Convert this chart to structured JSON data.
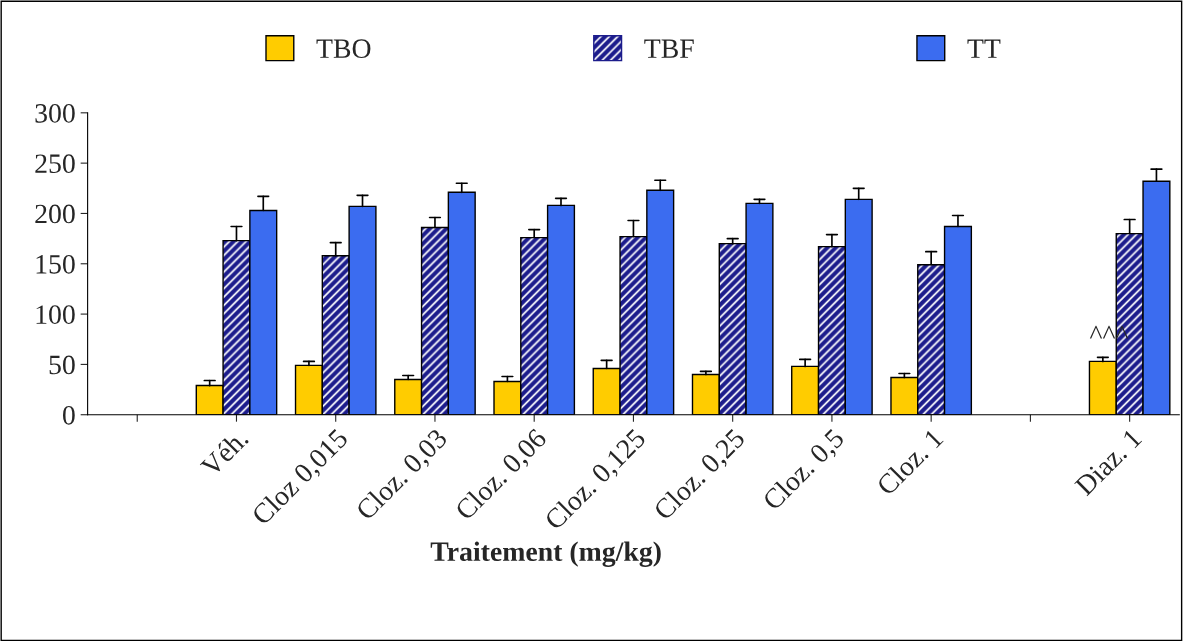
{
  "chart_data": {
    "type": "bar",
    "xlabel": "Traitement (mg/kg)",
    "categories": [
      null,
      "Véh.",
      "Cloz 0,015",
      "Cloz. 0,03",
      "Cloz. 0,06",
      "Cloz. 0,125",
      "Cloz. 0,25",
      "Cloz. 0,5",
      "Cloz. 1",
      null,
      "Diaz. 1"
    ],
    "series": [
      {
        "name": "TBO",
        "color": "#ffcc00",
        "values": [
          null,
          29,
          49,
          35,
          33,
          46,
          40,
          48,
          37,
          null,
          53
        ],
        "errors": [
          null,
          [
            29,
            34
          ],
          [
            49,
            53
          ],
          [
            35,
            39
          ],
          [
            33,
            38
          ],
          [
            46,
            54
          ],
          [
            40,
            43
          ],
          [
            48,
            55
          ],
          [
            37,
            41
          ],
          null,
          [
            53,
            57
          ]
        ]
      },
      {
        "name": "TBF",
        "color": "#1c1c8c",
        "values": [
          null,
          173,
          158,
          186,
          176,
          177,
          170,
          167,
          149,
          null,
          180
        ],
        "errors": [
          null,
          [
            173,
            187
          ],
          [
            158,
            171
          ],
          [
            186,
            196
          ],
          [
            176,
            184
          ],
          [
            177,
            193
          ],
          [
            170,
            175
          ],
          [
            167,
            179
          ],
          [
            149,
            162
          ],
          null,
          [
            180,
            194
          ]
        ]
      },
      {
        "name": "TT",
        "color": "#3b6cf0",
        "values": [
          null,
          203,
          207,
          221,
          208,
          223,
          210,
          214,
          187,
          null,
          232
        ],
        "errors": [
          null,
          [
            203,
            217
          ],
          [
            207,
            218
          ],
          [
            221,
            230
          ],
          [
            208,
            215
          ],
          [
            223,
            233
          ],
          [
            210,
            214
          ],
          [
            214,
            225
          ],
          [
            187,
            198
          ],
          null,
          [
            232,
            244
          ]
        ]
      }
    ],
    "ylim": [
      0,
      300
    ],
    "yticks": [
      0,
      50,
      100,
      150,
      200,
      250,
      300
    ],
    "grid": false,
    "legend": "top",
    "annotations": [
      "^^^"
    ]
  }
}
